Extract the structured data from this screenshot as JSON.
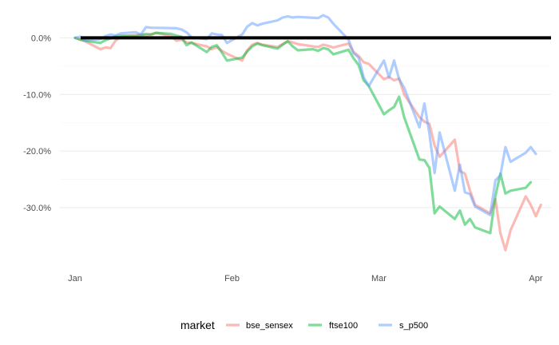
{
  "chart_data": {
    "type": "line",
    "title": "",
    "xlabel": "",
    "ylabel": "",
    "x_ticks": [
      "Jan",
      "Feb",
      "Mar",
      "Apr"
    ],
    "y_ticks": [
      "0.0%",
      "-10.0%",
      "-20.0%",
      "-30.0%"
    ],
    "ylim": [
      -41,
      5
    ],
    "grid": true,
    "reference_line": {
      "y": 0,
      "color": "#000000"
    },
    "legend": {
      "title": "market",
      "position": "bottom",
      "entries": [
        "bse_sensex",
        "ftse100",
        "s_p500"
      ]
    },
    "series": [
      {
        "name": "bse_sensex",
        "color": "#F8766D",
        "points": [
          [
            "2020-01-01",
            0
          ],
          [
            "2020-01-02",
            -0.3
          ],
          [
            "2020-01-03",
            -0.6
          ],
          [
            "2020-01-06",
            -2.0
          ],
          [
            "2020-01-07",
            -1.7
          ],
          [
            "2020-01-08",
            -1.8
          ],
          [
            "2020-01-09",
            -0.5
          ],
          [
            "2020-01-10",
            0.2
          ],
          [
            "2020-01-13",
            0.5
          ],
          [
            "2020-01-14",
            0.6
          ],
          [
            "2020-01-15",
            0.4
          ],
          [
            "2020-01-16",
            0.6
          ],
          [
            "2020-01-17",
            0.9
          ],
          [
            "2020-01-20",
            0.3
          ],
          [
            "2020-01-21",
            -0.5
          ],
          [
            "2020-01-22",
            -0.3
          ],
          [
            "2020-01-23",
            -0.8
          ],
          [
            "2020-01-24",
            -0.9
          ],
          [
            "2020-01-27",
            -1.5
          ],
          [
            "2020-01-28",
            -2.0
          ],
          [
            "2020-01-29",
            -1.6
          ],
          [
            "2020-01-30",
            -2.3
          ],
          [
            "2020-01-31",
            -2.8
          ],
          [
            "2020-02-03",
            -4.0
          ],
          [
            "2020-02-04",
            -2.2
          ],
          [
            "2020-02-05",
            -1.2
          ],
          [
            "2020-02-06",
            -0.9
          ],
          [
            "2020-02-07",
            -1.2
          ],
          [
            "2020-02-10",
            -1.6
          ],
          [
            "2020-02-11",
            -1.1
          ],
          [
            "2020-02-12",
            -0.6
          ],
          [
            "2020-02-13",
            -0.8
          ],
          [
            "2020-02-14",
            -1.1
          ],
          [
            "2020-02-17",
            -1.5
          ],
          [
            "2020-02-18",
            -1.6
          ],
          [
            "2020-02-19",
            -1.2
          ],
          [
            "2020-02-20",
            -1.4
          ],
          [
            "2020-02-21",
            -1.7
          ],
          [
            "2020-02-24",
            -1.0
          ],
          [
            "2020-02-25",
            -2.5
          ],
          [
            "2020-02-26",
            -3.2
          ],
          [
            "2020-02-27",
            -4.3
          ],
          [
            "2020-02-28",
            -4.6
          ],
          [
            "2020-03-02",
            -7.3
          ],
          [
            "2020-03-03",
            -6.9
          ],
          [
            "2020-03-04",
            -7.5
          ],
          [
            "2020-03-05",
            -7.2
          ],
          [
            "2020-03-06",
            -10.0
          ],
          [
            "2020-03-09",
            -14.0
          ],
          [
            "2020-03-10",
            -14.8
          ],
          [
            "2020-03-11",
            -15.2
          ],
          [
            "2020-03-12",
            -19.0
          ],
          [
            "2020-03-13",
            -21.0
          ],
          [
            "2020-03-16",
            -18.0
          ],
          [
            "2020-03-17",
            -23.5
          ],
          [
            "2020-03-18",
            -24.0
          ],
          [
            "2020-03-19",
            -27.0
          ],
          [
            "2020-03-20",
            -29.5
          ],
          [
            "2020-03-23",
            -31.0
          ],
          [
            "2020-03-24",
            -28.5
          ],
          [
            "2020-03-25",
            -34.5
          ],
          [
            "2020-03-26",
            -37.5
          ],
          [
            "2020-03-27",
            -34.0
          ],
          [
            "2020-03-30",
            -28.0
          ],
          [
            "2020-03-31",
            -29.5
          ],
          [
            "2020-04-01",
            -31.5
          ],
          [
            "2020-04-02",
            -29.5
          ]
        ]
      },
      {
        "name": "ftse100",
        "color": "#00BA38",
        "points": [
          [
            "2020-01-01",
            0
          ],
          [
            "2020-01-02",
            -0.3
          ],
          [
            "2020-01-03",
            -0.5
          ],
          [
            "2020-01-06",
            -0.9
          ],
          [
            "2020-01-07",
            -0.4
          ],
          [
            "2020-01-08",
            -0.1
          ],
          [
            "2020-01-09",
            0.3
          ],
          [
            "2020-01-10",
            0.4
          ],
          [
            "2020-01-13",
            0.3
          ],
          [
            "2020-01-14",
            0.5
          ],
          [
            "2020-01-15",
            0.7
          ],
          [
            "2020-01-16",
            0.6
          ],
          [
            "2020-01-17",
            0.9
          ],
          [
            "2020-01-20",
            0.7
          ],
          [
            "2020-01-21",
            0.4
          ],
          [
            "2020-01-22",
            0.2
          ],
          [
            "2020-01-23",
            -1.3
          ],
          [
            "2020-01-24",
            -0.8
          ],
          [
            "2020-01-27",
            -2.5
          ],
          [
            "2020-01-28",
            -1.6
          ],
          [
            "2020-01-29",
            -1.3
          ],
          [
            "2020-01-30",
            -2.6
          ],
          [
            "2020-01-31",
            -4.0
          ],
          [
            "2020-02-03",
            -3.5
          ],
          [
            "2020-02-04",
            -2.4
          ],
          [
            "2020-02-05",
            -1.5
          ],
          [
            "2020-02-06",
            -1.0
          ],
          [
            "2020-02-07",
            -1.3
          ],
          [
            "2020-02-10",
            -1.9
          ],
          [
            "2020-02-11",
            -1.2
          ],
          [
            "2020-02-12",
            -0.6
          ],
          [
            "2020-02-13",
            -1.5
          ],
          [
            "2020-02-14",
            -2.2
          ],
          [
            "2020-02-17",
            -2.0
          ],
          [
            "2020-02-18",
            -2.3
          ],
          [
            "2020-02-19",
            -1.8
          ],
          [
            "2020-02-20",
            -2.0
          ],
          [
            "2020-02-21",
            -2.9
          ],
          [
            "2020-02-24",
            -2.1
          ],
          [
            "2020-02-25",
            -3.6
          ],
          [
            "2020-02-26",
            -4.8
          ],
          [
            "2020-02-27",
            -7.5
          ],
          [
            "2020-02-28",
            -8.5
          ],
          [
            "2020-03-02",
            -13.5
          ],
          [
            "2020-03-03",
            -12.8
          ],
          [
            "2020-03-04",
            -12.2
          ],
          [
            "2020-03-05",
            -10.4
          ],
          [
            "2020-03-06",
            -14.0
          ],
          [
            "2020-03-09",
            -21.5
          ],
          [
            "2020-03-10",
            -21.6
          ],
          [
            "2020-03-11",
            -23.0
          ],
          [
            "2020-03-12",
            -31.0
          ],
          [
            "2020-03-13",
            -29.8
          ],
          [
            "2020-03-16",
            -32.0
          ],
          [
            "2020-03-17",
            -30.5
          ],
          [
            "2020-03-18",
            -33.0
          ],
          [
            "2020-03-19",
            -32.0
          ],
          [
            "2020-03-20",
            -33.5
          ],
          [
            "2020-03-23",
            -34.5
          ],
          [
            "2020-03-24",
            -28.0
          ],
          [
            "2020-03-25",
            -24.0
          ],
          [
            "2020-03-26",
            -27.5
          ],
          [
            "2020-03-27",
            -27.0
          ],
          [
            "2020-03-30",
            -26.5
          ],
          [
            "2020-03-31",
            -25.5
          ]
        ]
      },
      {
        "name": "s_p500",
        "color": "#619CFF",
        "points": [
          [
            "2020-01-01",
            0
          ],
          [
            "2020-01-02",
            0.2
          ],
          [
            "2020-01-03",
            -0.5
          ],
          [
            "2020-01-06",
            -0.2
          ],
          [
            "2020-01-07",
            0.3
          ],
          [
            "2020-01-08",
            0.6
          ],
          [
            "2020-01-09",
            0.4
          ],
          [
            "2020-01-10",
            0.8
          ],
          [
            "2020-01-13",
            1.0
          ],
          [
            "2020-01-14",
            0.6
          ],
          [
            "2020-01-15",
            1.9
          ],
          [
            "2020-01-16",
            1.8
          ],
          [
            "2020-01-21",
            1.7
          ],
          [
            "2020-01-22",
            1.5
          ],
          [
            "2020-01-23",
            1.0
          ],
          [
            "2020-01-24",
            0.1
          ],
          [
            "2020-01-27",
            -0.2
          ],
          [
            "2020-01-28",
            0.8
          ],
          [
            "2020-01-29",
            0.6
          ],
          [
            "2020-01-30",
            0.5
          ],
          [
            "2020-01-31",
            -0.9
          ],
          [
            "2020-02-03",
            0.6
          ],
          [
            "2020-02-04",
            2.0
          ],
          [
            "2020-02-05",
            2.6
          ],
          [
            "2020-02-06",
            2.2
          ],
          [
            "2020-02-07",
            2.5
          ],
          [
            "2020-02-10",
            3.1
          ],
          [
            "2020-02-11",
            3.6
          ],
          [
            "2020-02-12",
            3.8
          ],
          [
            "2020-02-13",
            3.6
          ],
          [
            "2020-02-14",
            3.7
          ],
          [
            "2020-02-18",
            3.5
          ],
          [
            "2020-02-19",
            4.0
          ],
          [
            "2020-02-20",
            3.6
          ],
          [
            "2020-02-21",
            2.5
          ],
          [
            "2020-02-24",
            -0.3
          ],
          [
            "2020-02-25",
            -2.7
          ],
          [
            "2020-02-26",
            -3.5
          ],
          [
            "2020-02-27",
            -7.0
          ],
          [
            "2020-02-28",
            -8.5
          ],
          [
            "2020-03-02",
            -4.0
          ],
          [
            "2020-03-03",
            -7.0
          ],
          [
            "2020-03-04",
            -4.0
          ],
          [
            "2020-03-05",
            -7.3
          ],
          [
            "2020-03-06",
            -8.8
          ],
          [
            "2020-03-09",
            -15.8
          ],
          [
            "2020-03-10",
            -11.6
          ],
          [
            "2020-03-11",
            -17.0
          ],
          [
            "2020-03-12",
            -23.9
          ],
          [
            "2020-03-13",
            -16.7
          ],
          [
            "2020-03-16",
            -27.0
          ],
          [
            "2020-03-17",
            -22.4
          ],
          [
            "2020-03-18",
            -27.3
          ],
          [
            "2020-03-19",
            -27.6
          ],
          [
            "2020-03-20",
            -29.8
          ],
          [
            "2020-03-23",
            -31.3
          ],
          [
            "2020-03-24",
            -25.2
          ],
          [
            "2020-03-25",
            -24.3
          ],
          [
            "2020-03-26",
            -19.3
          ],
          [
            "2020-03-27",
            -21.9
          ],
          [
            "2020-03-30",
            -20.3
          ],
          [
            "2020-03-31",
            -19.3
          ],
          [
            "2020-04-01",
            -20.5
          ]
        ]
      }
    ]
  }
}
